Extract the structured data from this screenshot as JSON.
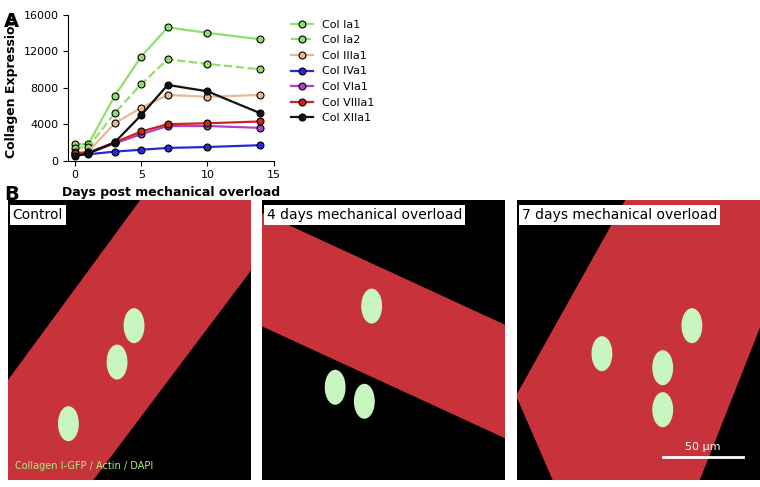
{
  "chart_data": {
    "type": "line",
    "panel_label": "A",
    "x_label": "Days post mechanical overload",
    "y_label": "Collagen Expression",
    "x": [
      0,
      1,
      3,
      5,
      7,
      10,
      14
    ],
    "series": [
      {
        "name": "Col Ia1",
        "color": "#8ee06a",
        "line_style": "solid",
        "marker": "o",
        "values": [
          1800,
          1800,
          7100,
          11400,
          14600,
          14000,
          13300
        ]
      },
      {
        "name": "Col Ia2",
        "color": "#8ee06a",
        "line_style": "dashed",
        "marker": "o",
        "values": [
          1400,
          1500,
          5200,
          8400,
          11100,
          10600,
          10000
        ]
      },
      {
        "name": "Col IIIa1",
        "color": "#e8b894",
        "line_style": "solid",
        "marker": "o",
        "values": [
          900,
          1000,
          4100,
          5800,
          7200,
          7000,
          7200
        ]
      },
      {
        "name": "Col IVa1",
        "color": "#2a2ad0",
        "line_style": "solid",
        "marker": "o",
        "values": [
          600,
          700,
          1000,
          1200,
          1400,
          1500,
          1700
        ]
      },
      {
        "name": "Col VIa1",
        "color": "#b040c8",
        "line_style": "solid",
        "marker": "o",
        "values": [
          700,
          800,
          1900,
          2900,
          3800,
          3800,
          3600
        ]
      },
      {
        "name": "Col VIIIa1",
        "color": "#d02020",
        "line_style": "solid",
        "marker": "o",
        "values": [
          800,
          900,
          2000,
          3200,
          4000,
          4100,
          4300
        ]
      },
      {
        "name": "Col XIIa1",
        "color": "#111111",
        "line_style": "solid",
        "marker": "o",
        "values": [
          500,
          800,
          2000,
          5000,
          8300,
          7600,
          5200
        ]
      }
    ],
    "xlim": [
      -0.5,
      15
    ],
    "xticks": [
      0,
      5,
      10,
      15
    ],
    "ylim": [
      0,
      16000
    ],
    "yticks": [
      0,
      4000,
      8000,
      12000,
      16000
    ],
    "grid": false,
    "legend": "upper right"
  },
  "images": {
    "panel_label": "B",
    "panels": [
      "Control",
      "4 days mechanical overload",
      "7 days mechanical overload"
    ],
    "stain_caption": "Collagen I-GFP / Actin / DAPI",
    "scale_bar": "50 µm"
  }
}
